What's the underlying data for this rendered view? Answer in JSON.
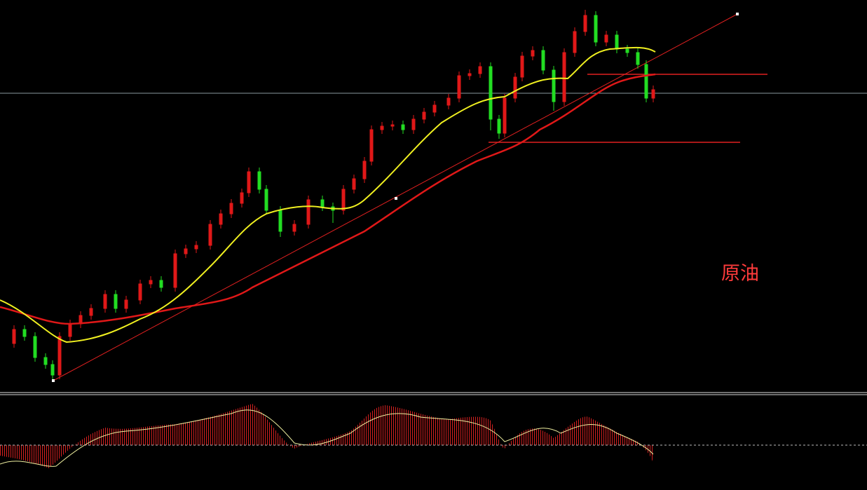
{
  "label": "原油"
}
